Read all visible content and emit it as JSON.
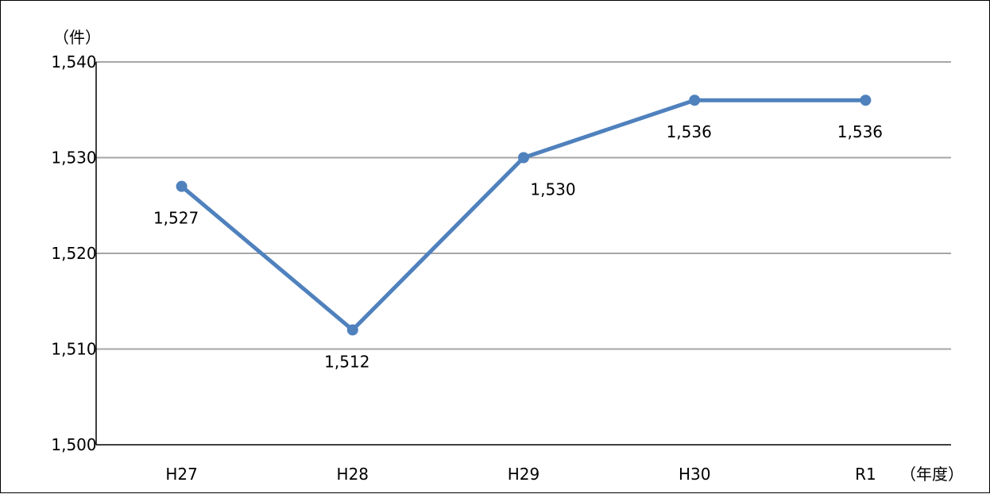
{
  "chart_data": {
    "type": "line",
    "categories": [
      "H27",
      "H28",
      "H29",
      "H30",
      "R1"
    ],
    "series": [
      {
        "values": [
          1527,
          1512,
          1530,
          1536,
          1536
        ]
      }
    ],
    "data_labels": [
      "1,527",
      "1,512",
      "1,530",
      "1,536",
      "1,536"
    ],
    "y_tick_labels": [
      "1,500",
      "1,510",
      "1,520",
      "1,530",
      "1,540"
    ],
    "y_ticks": [
      1500,
      1510,
      1520,
      1530,
      1540
    ],
    "ylim": [
      1500,
      1540
    ],
    "y_unit": "（件）",
    "x_unit": "（年度）",
    "grid": true,
    "legend": "none",
    "colors": {
      "line": "#4F81BD",
      "grid": "#A6A6A6",
      "axis": "#000000"
    }
  }
}
